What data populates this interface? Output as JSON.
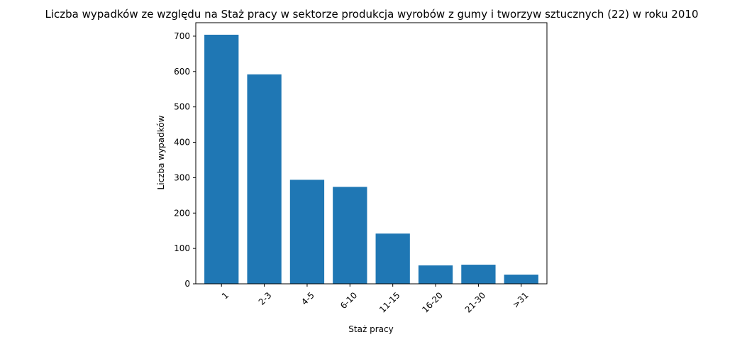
{
  "chart_data": {
    "type": "bar",
    "title": "Liczba wypadków ze względu na Staż pracy w sektorze produkcja wyrobów z gumy i tworzyw sztucznych (22) w roku 2010",
    "xlabel": "Staż pracy",
    "ylabel": "Liczba wypadków",
    "categories": [
      "1",
      "2-3",
      "4-5",
      "6-10",
      "11-15",
      "16-20",
      "21-30",
      ">31"
    ],
    "values": [
      704,
      592,
      294,
      274,
      142,
      52,
      54,
      26
    ],
    "ylim": [
      0,
      738
    ],
    "yticks": [
      0,
      100,
      200,
      300,
      400,
      500,
      600,
      700
    ],
    "bar_color": "#1f77b4",
    "grid": false,
    "xtick_rotation_deg": 45
  }
}
